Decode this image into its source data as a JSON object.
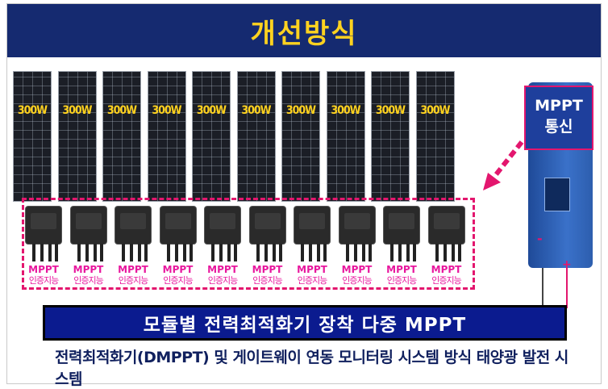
{
  "header": {
    "title": "개선방식"
  },
  "panels": [
    {
      "label": "300W"
    },
    {
      "label": "300W"
    },
    {
      "label": "300W"
    },
    {
      "label": "300W"
    },
    {
      "label": "300W"
    },
    {
      "label": "300W"
    },
    {
      "label": "300W"
    },
    {
      "label": "300W"
    },
    {
      "label": "300W"
    },
    {
      "label": "300W"
    }
  ],
  "optimizers": [
    {
      "line1": "MPPT",
      "line2": "인증지능"
    },
    {
      "line1": "MPPT",
      "line2": "인증지능"
    },
    {
      "line1": "MPPT",
      "line2": "인증지능"
    },
    {
      "line1": "MPPT",
      "line2": "인증지능"
    },
    {
      "line1": "MPPT",
      "line2": "인증지능"
    },
    {
      "line1": "MPPT",
      "line2": "인증지능"
    },
    {
      "line1": "MPPT",
      "line2": "인증지능"
    },
    {
      "line1": "MPPT",
      "line2": "인증지능"
    },
    {
      "line1": "MPPT",
      "line2": "인증지능"
    },
    {
      "line1": "MPPT",
      "line2": "인증지능"
    }
  ],
  "callout": {
    "line1": "MPPT",
    "line2": "통신"
  },
  "inverter": {
    "minus": "-",
    "plus": "+"
  },
  "banner": {
    "text": "모듈별 전력최적화기 장착 다중 MPPT"
  },
  "subtitle": {
    "text": "전력최적화기(DMPPT) 및 게이트웨이 연동 모니터링 시스템 방식 태양광 발전 시스템"
  },
  "colors": {
    "header_bg": "#152a70",
    "title": "#ffd21f",
    "accent": "#e3166e",
    "banner_bg": "#0b1b8f"
  }
}
